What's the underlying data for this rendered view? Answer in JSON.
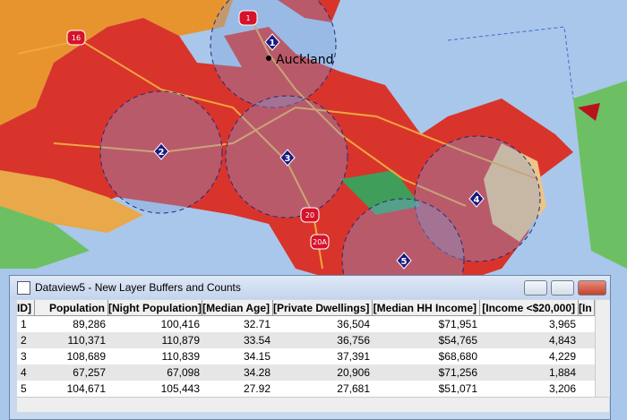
{
  "map": {
    "place_label": "Auckland",
    "markers": [
      "1",
      "2",
      "3",
      "4",
      "5"
    ],
    "road_shields": [
      "1",
      "16",
      "20",
      "20A"
    ]
  },
  "window": {
    "title": "Dataview5 - New Layer Buffers and Counts"
  },
  "table": {
    "columns": [
      "ID]",
      "Population",
      "[Night Population]",
      "[Median Age]",
      "[Private Dwellings]",
      "[Median HH Income]",
      "[Income <$20,000]",
      "[In"
    ],
    "rows": [
      [
        "1",
        "89,286",
        "100,416",
        "32.71",
        "36,504",
        "$71,951",
        "3,965"
      ],
      [
        "2",
        "110,371",
        "110,879",
        "33.54",
        "36,756",
        "$54,765",
        "4,843"
      ],
      [
        "3",
        "108,689",
        "110,839",
        "34.15",
        "37,391",
        "$68,680",
        "4,229"
      ],
      [
        "4",
        "67,257",
        "67,098",
        "34.28",
        "20,906",
        "$71,256",
        "1,884"
      ],
      [
        "5",
        "104,671",
        "105,443",
        "27.92",
        "27,681",
        "$51,071",
        "3,206"
      ]
    ]
  }
}
